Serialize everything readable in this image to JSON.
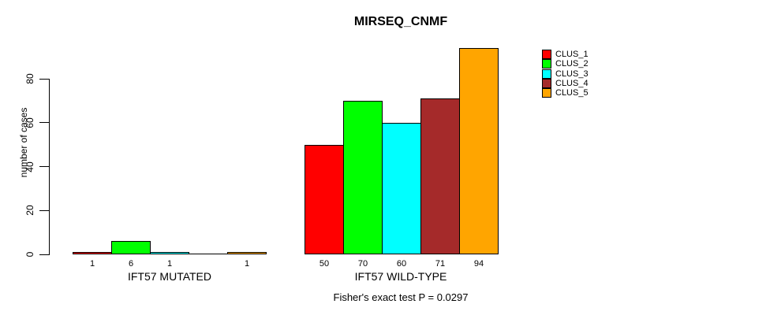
{
  "chart_data": {
    "type": "bar",
    "title": "MIRSEQ_CNMF",
    "ylabel": "number of cases",
    "xlabel": "",
    "categories": [
      "IFT57 MUTATED",
      "IFT57 WILD-TYPE"
    ],
    "series": [
      {
        "name": "CLUS_1",
        "color": "#ff0000",
        "values": [
          1,
          50
        ]
      },
      {
        "name": "CLUS_2",
        "color": "#00ff00",
        "values": [
          6,
          70
        ]
      },
      {
        "name": "CLUS_3",
        "color": "#00ffff",
        "values": [
          1,
          60
        ]
      },
      {
        "name": "CLUS_4",
        "color": "#a52a2a",
        "values": [
          0,
          71
        ]
      },
      {
        "name": "CLUS_5",
        "color": "#ffa500",
        "values": [
          1,
          94
        ]
      }
    ],
    "bar_value_labels": [
      [
        "1",
        "6",
        "1",
        "",
        "1"
      ],
      [
        "50",
        "70",
        "60",
        "71",
        "94"
      ]
    ],
    "y_ticks": [
      0,
      20,
      40,
      60,
      80
    ],
    "ylim": [
      0,
      94
    ],
    "grid": false,
    "legend_position": "top-right",
    "legend_entries": [
      "CLUS_1",
      "CLUS_2",
      "CLUS_3",
      "CLUS_4",
      "CLUS_5"
    ],
    "footer": "Fisher's exact test P = 0.0297",
    "axis_color": "#000000",
    "background_color": "#ffffff"
  }
}
